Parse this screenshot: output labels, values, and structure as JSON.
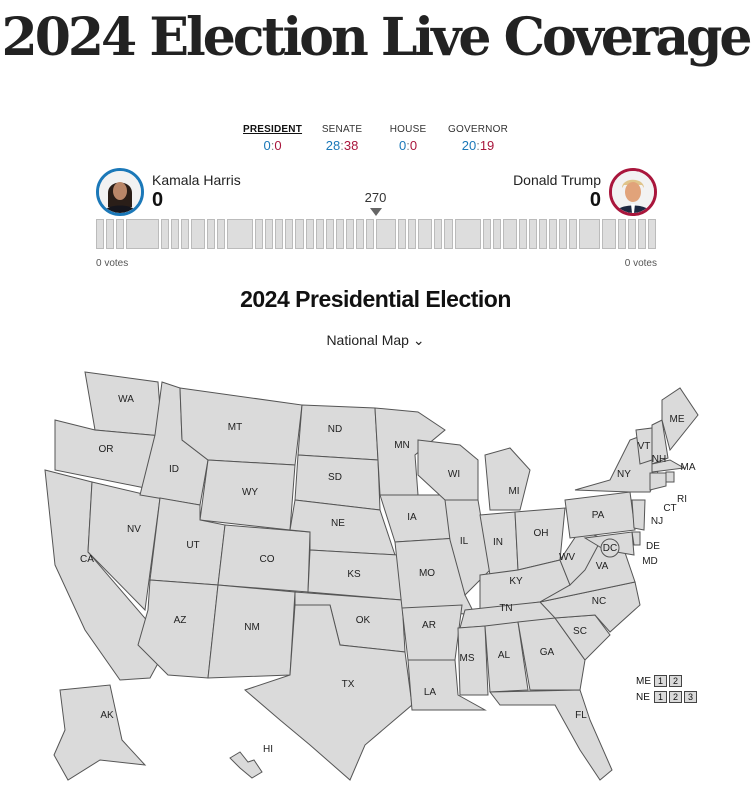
{
  "page_title": "2024 Election Live Coverage",
  "tabs": [
    {
      "label": "PRESIDENT",
      "dem": "0",
      "rep": "0"
    },
    {
      "label": "SENATE",
      "dem": "28",
      "rep": "38"
    },
    {
      "label": "HOUSE",
      "dem": "0",
      "rep": "0"
    },
    {
      "label": "GOVERNOR",
      "dem": "20",
      "rep": "19"
    }
  ],
  "score_sep": ":",
  "candidates": {
    "left": {
      "name": "Kamala Harris",
      "electoral": "0",
      "popular": "0 votes"
    },
    "right": {
      "name": "Donald Trump",
      "electoral": "0",
      "popular": "0 votes"
    }
  },
  "threshold": "270",
  "section_title": "2024 Presidential Election",
  "map_selector": "National Map ⌄",
  "colors": {
    "dem": "#1b78b8",
    "rep": "#a9163c",
    "undecided": "#dadada"
  },
  "states": [
    "WA",
    "OR",
    "CA",
    "NV",
    "ID",
    "MT",
    "WY",
    "UT",
    "AZ",
    "CO",
    "NM",
    "ND",
    "SD",
    "NE",
    "KS",
    "OK",
    "TX",
    "MN",
    "IA",
    "MO",
    "AR",
    "LA",
    "WI",
    "IL",
    "MI",
    "IN",
    "OH",
    "KY",
    "TN",
    "MS",
    "AL",
    "GA",
    "FL",
    "SC",
    "NC",
    "VA",
    "WV",
    "PA",
    "NY",
    "VT",
    "NH",
    "ME",
    "MA",
    "RI",
    "CT",
    "NJ",
    "DE",
    "MD",
    "DC",
    "AK",
    "HI"
  ],
  "districts": {
    "me_label": "ME",
    "ne_label": "NE",
    "me": [
      "1",
      "2"
    ],
    "ne": [
      "1",
      "2",
      "3"
    ]
  }
}
